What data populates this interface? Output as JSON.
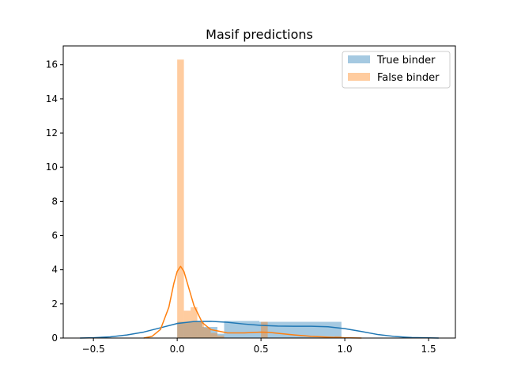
{
  "chart_data": {
    "type": "bar",
    "title": "Masif predictions",
    "xlabel": "",
    "ylabel": "",
    "xlim": [
      -0.68,
      1.66
    ],
    "ylim": [
      0,
      17.1
    ],
    "xticks": [
      -0.5,
      0.0,
      0.5,
      1.0,
      1.5
    ],
    "xtick_labels": [
      "−0.5",
      "0.0",
      "0.5",
      "1.0",
      "1.5"
    ],
    "yticks": [
      0,
      2,
      4,
      6,
      8,
      10,
      12,
      14,
      16
    ],
    "ytick_labels": [
      "0",
      "2",
      "4",
      "6",
      "8",
      "10",
      "12",
      "14",
      "16"
    ],
    "grid": false,
    "legend_position": "top-right",
    "series": [
      {
        "name": "True binder",
        "kind": "histogram+kde",
        "color": "#1f77b4",
        "bar_alpha": 0.4,
        "bins": [
          {
            "x0": 0.0,
            "x1": 0.15,
            "value": 0.95
          },
          {
            "x0": 0.15,
            "x1": 0.24,
            "value": 0.65
          },
          {
            "x0": 0.24,
            "x1": 0.28,
            "value": 0.25
          },
          {
            "x0": 0.28,
            "x1": 0.49,
            "value": 1.0
          },
          {
            "x0": 0.49,
            "x1": 0.98,
            "value": 0.95
          }
        ],
        "kde_x": [
          -0.58,
          -0.5,
          -0.4,
          -0.3,
          -0.2,
          -0.1,
          0.0,
          0.1,
          0.2,
          0.3,
          0.4,
          0.5,
          0.6,
          0.7,
          0.8,
          0.9,
          1.0,
          1.1,
          1.2,
          1.3,
          1.4,
          1.5,
          1.56
        ],
        "kde_y": [
          0.0,
          0.02,
          0.07,
          0.18,
          0.35,
          0.6,
          0.85,
          0.97,
          0.98,
          0.92,
          0.82,
          0.74,
          0.7,
          0.69,
          0.69,
          0.66,
          0.55,
          0.38,
          0.2,
          0.09,
          0.03,
          0.01,
          0.0
        ]
      },
      {
        "name": "False binder",
        "kind": "histogram+kde",
        "color": "#ff7f0e",
        "bar_alpha": 0.4,
        "bins": [
          {
            "x0": 0.0,
            "x1": 0.04,
            "value": 16.3
          },
          {
            "x0": 0.04,
            "x1": 0.08,
            "value": 1.6
          },
          {
            "x0": 0.08,
            "x1": 0.12,
            "value": 1.8
          },
          {
            "x0": 0.12,
            "x1": 0.16,
            "value": 0.95
          },
          {
            "x0": 0.16,
            "x1": 0.2,
            "value": 0.6
          },
          {
            "x0": 0.2,
            "x1": 0.24,
            "value": 0.3
          },
          {
            "x0": 0.24,
            "x1": 0.28,
            "value": 0.15
          },
          {
            "x0": 0.5,
            "x1": 0.54,
            "value": 0.95
          },
          {
            "x0": 0.94,
            "x1": 0.98,
            "value": 0.1
          }
        ],
        "kde_x": [
          -0.2,
          -0.15,
          -0.1,
          -0.05,
          -0.02,
          0.0,
          0.02,
          0.04,
          0.07,
          0.1,
          0.15,
          0.2,
          0.3,
          0.4,
          0.5,
          0.55,
          0.6,
          0.7,
          0.8,
          0.9,
          1.0,
          1.1
        ],
        "kde_y": [
          0.0,
          0.1,
          0.5,
          1.8,
          3.2,
          3.9,
          4.2,
          3.9,
          2.9,
          1.9,
          0.9,
          0.5,
          0.3,
          0.3,
          0.35,
          0.33,
          0.28,
          0.18,
          0.1,
          0.05,
          0.02,
          0.0
        ]
      }
    ]
  }
}
